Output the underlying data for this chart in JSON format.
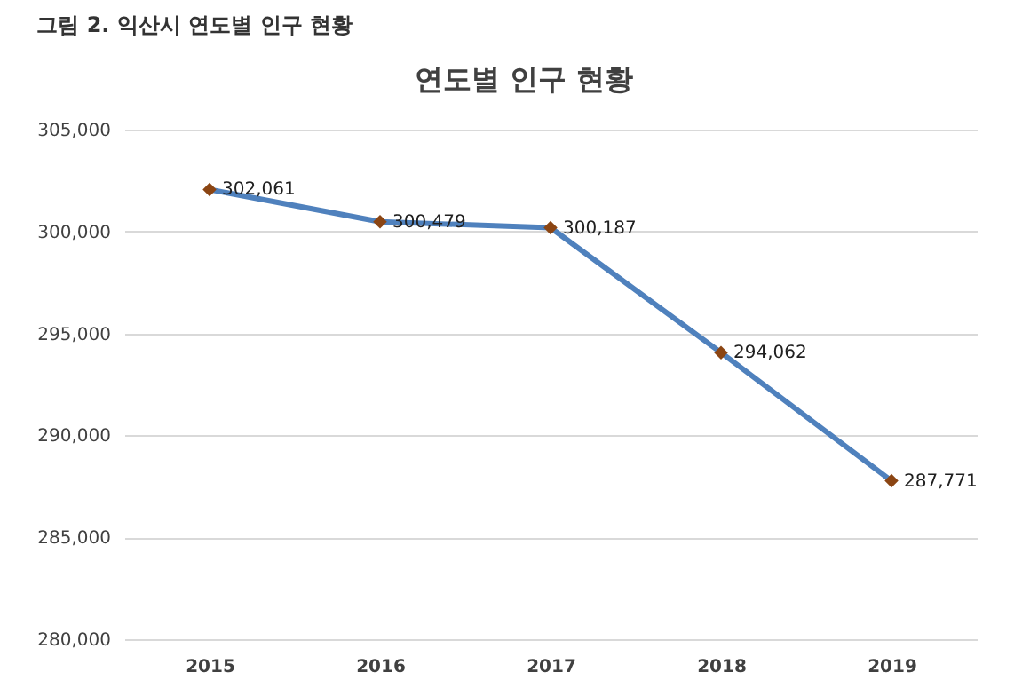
{
  "chart_data": {
    "type": "line",
    "title": "연도별 인구 현황",
    "annotations": [
      "그림 2. 익산시 연도별 인구 현황"
    ],
    "categories": [
      "2015",
      "2016",
      "2017",
      "2018",
      "2019"
    ],
    "series": [
      {
        "color": "#4f81bd",
        "values": [
          302061,
          300479,
          300187,
          294062,
          287771
        ],
        "value_labels": [
          "302,061",
          "300,479",
          "300,187",
          "294,062",
          "287,771"
        ]
      }
    ],
    "ylim": [
      280000,
      305000
    ],
    "yticks": [
      {
        "value": 280000,
        "label": "280,000"
      },
      {
        "value": 285000,
        "label": "285,000"
      },
      {
        "value": 290000,
        "label": "290,000"
      },
      {
        "value": 295000,
        "label": "295,000"
      },
      {
        "value": 300000,
        "label": "300,000"
      },
      {
        "value": 305000,
        "label": "305,000"
      }
    ],
    "grid": "y",
    "marker": "diamond",
    "line_style": "solid",
    "legend": false
  }
}
